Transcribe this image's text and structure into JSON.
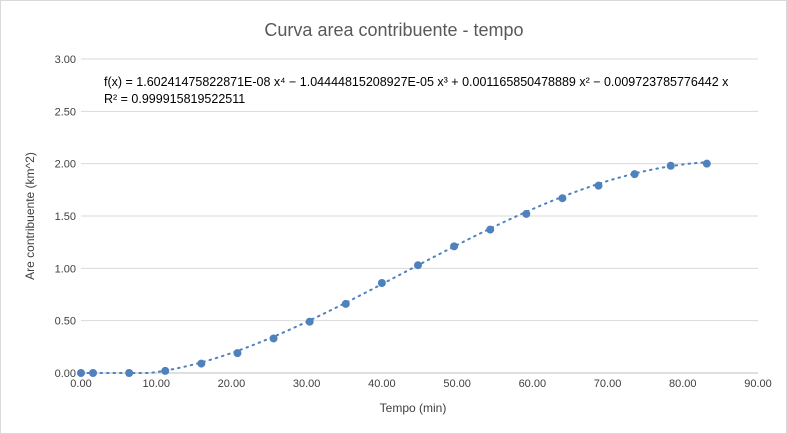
{
  "chart_data": {
    "type": "scatter",
    "title": "Curva area contribuente - tempo",
    "xlabel": "Tempo (min)",
    "ylabel": "Are contribuente (km^2)",
    "xlim": [
      0,
      90
    ],
    "ylim": [
      0,
      3
    ],
    "x_ticks": [
      "0.00",
      "10.00",
      "20.00",
      "30.00",
      "40.00",
      "50.00",
      "60.00",
      "70.00",
      "80.00",
      "90.00"
    ],
    "y_ticks": [
      "0.00",
      "0.50",
      "1.00",
      "1.50",
      "2.00",
      "2.50",
      "3.00"
    ],
    "grid": true,
    "colors": {
      "points": "#4f81bd",
      "trendline": "#4f81bd",
      "grid": "#d9d9d9"
    },
    "series": [
      {
        "x": [
          0,
          1.6,
          6.4,
          11.2,
          16.0,
          20.8,
          25.6,
          30.4,
          35.2,
          40.0,
          44.8,
          49.6,
          54.4,
          59.2,
          64.0,
          68.8,
          73.6,
          78.4,
          83.2
        ],
        "y": [
          0.0,
          0.0,
          0.0,
          0.02,
          0.09,
          0.19,
          0.33,
          0.49,
          0.66,
          0.86,
          1.03,
          1.21,
          1.37,
          1.52,
          1.67,
          1.79,
          1.9,
          1.98,
          2.0
        ]
      }
    ],
    "trendline": {
      "type": "polynomial",
      "coefficients": [
        -0.00972378577644,
        0.001165850478889,
        -1.04444815208927e-05,
        1.60241475822871e-08
      ],
      "equation": "f(x) = 1.60241475822871E-08 x⁴ − 1.04444815208927E-05 x³ + 0.001165850478889 x² − 0.009723785776442 x",
      "r2": "R² = 0.999915819522511"
    }
  }
}
